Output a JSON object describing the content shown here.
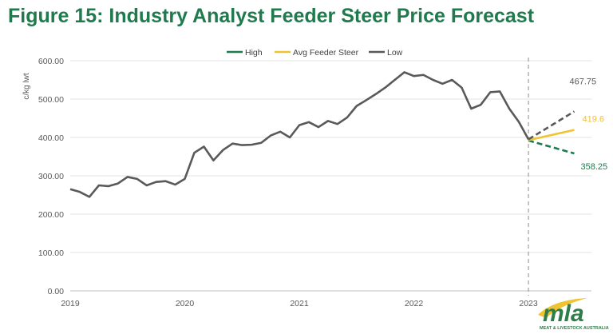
{
  "title": "Figure 15: Industry Analyst Feeder Steer Price Forecast",
  "logo": {
    "name": "mla",
    "tagline": "MEAT & LIVESTOCK AUSTRALIA"
  },
  "chart_data": {
    "type": "line",
    "title": "",
    "ylabel": "c/kg lwt",
    "xlabel": "",
    "ylim": [
      0,
      600
    ],
    "yticks": [
      "0.00",
      "100.00",
      "200.00",
      "300.00",
      "400.00",
      "500.00",
      "600.00"
    ],
    "xlim": [
      2019,
      2023.55
    ],
    "xticks": [
      "2019",
      "2020",
      "2021",
      "2022",
      "2023"
    ],
    "grid": true,
    "legend_position": "top",
    "forecast_marker_x": 2023,
    "legend": [
      {
        "name": "High",
        "color": "#1f7a4d"
      },
      {
        "name": "Avg Feeder Steer",
        "color": "#f0c330"
      },
      {
        "name": "Low",
        "color": "#595959"
      }
    ],
    "history": {
      "color": "#595959",
      "x": [
        2019.0,
        2019.083,
        2019.167,
        2019.25,
        2019.333,
        2019.417,
        2019.5,
        2019.583,
        2019.667,
        2019.75,
        2019.833,
        2019.917,
        2020.0,
        2020.083,
        2020.167,
        2020.25,
        2020.333,
        2020.417,
        2020.5,
        2020.583,
        2020.667,
        2020.75,
        2020.833,
        2020.917,
        2021.0,
        2021.083,
        2021.167,
        2021.25,
        2021.333,
        2021.417,
        2021.5,
        2021.583,
        2021.667,
        2021.75,
        2021.833,
        2021.917,
        2022.0,
        2022.083,
        2022.167,
        2022.25,
        2022.333,
        2022.417,
        2022.5,
        2022.583,
        2022.667,
        2022.75,
        2022.833,
        2022.917,
        2023.0
      ],
      "values": [
        265,
        258,
        245,
        275,
        273,
        280,
        297,
        292,
        275,
        284,
        286,
        277,
        292,
        360,
        376,
        340,
        367,
        384,
        380,
        381,
        386,
        405,
        415,
        400,
        432,
        440,
        427,
        443,
        435,
        452,
        482,
        497,
        513,
        530,
        550,
        570,
        560,
        563,
        550,
        540,
        550,
        530,
        475,
        485,
        518,
        520,
        475,
        440,
        395
      ]
    },
    "series": [
      {
        "name": "High",
        "color": "#1f7a4d",
        "dashed": true,
        "x": [
          2023.0,
          2023.4
        ],
        "values": [
          392,
          358.25
        ],
        "end_label": "358.25"
      },
      {
        "name": "Avg Feeder Steer",
        "color": "#f0c330",
        "dashed": false,
        "x": [
          2023.0,
          2023.4
        ],
        "values": [
          393,
          419.6
        ],
        "end_label": "419.6"
      },
      {
        "name": "Low",
        "color": "#595959",
        "dashed": true,
        "x": [
          2023.0,
          2023.4
        ],
        "values": [
          395,
          467.75
        ],
        "end_label": "467.75"
      }
    ]
  }
}
